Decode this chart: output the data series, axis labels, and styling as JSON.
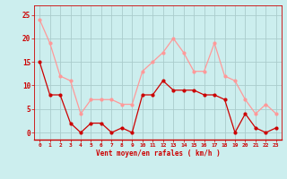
{
  "x": [
    0,
    1,
    2,
    3,
    4,
    5,
    6,
    7,
    8,
    9,
    10,
    11,
    12,
    13,
    14,
    15,
    16,
    17,
    18,
    19,
    20,
    21,
    22,
    23
  ],
  "mean_wind": [
    15,
    8,
    8,
    2,
    0,
    2,
    2,
    0,
    1,
    0,
    8,
    8,
    11,
    9,
    9,
    9,
    8,
    8,
    7,
    0,
    4,
    1,
    0,
    1
  ],
  "gust_wind": [
    24,
    19,
    12,
    11,
    4,
    7,
    7,
    7,
    6,
    6,
    13,
    15,
    17,
    20,
    17,
    13,
    13,
    19,
    12,
    11,
    7,
    4,
    6,
    4
  ],
  "mean_color": "#cc0000",
  "gust_color": "#ff9999",
  "bg_color": "#cceeee",
  "grid_color": "#aacccc",
  "axis_label_color": "#cc0000",
  "tick_color": "#cc0000",
  "xlabel": "Vent moyen/en rafales ( km/h )",
  "ylabel_ticks": [
    0,
    5,
    10,
    15,
    20,
    25
  ],
  "ylim": [
    -1.5,
    27
  ],
  "xlim": [
    -0.5,
    23.5
  ]
}
